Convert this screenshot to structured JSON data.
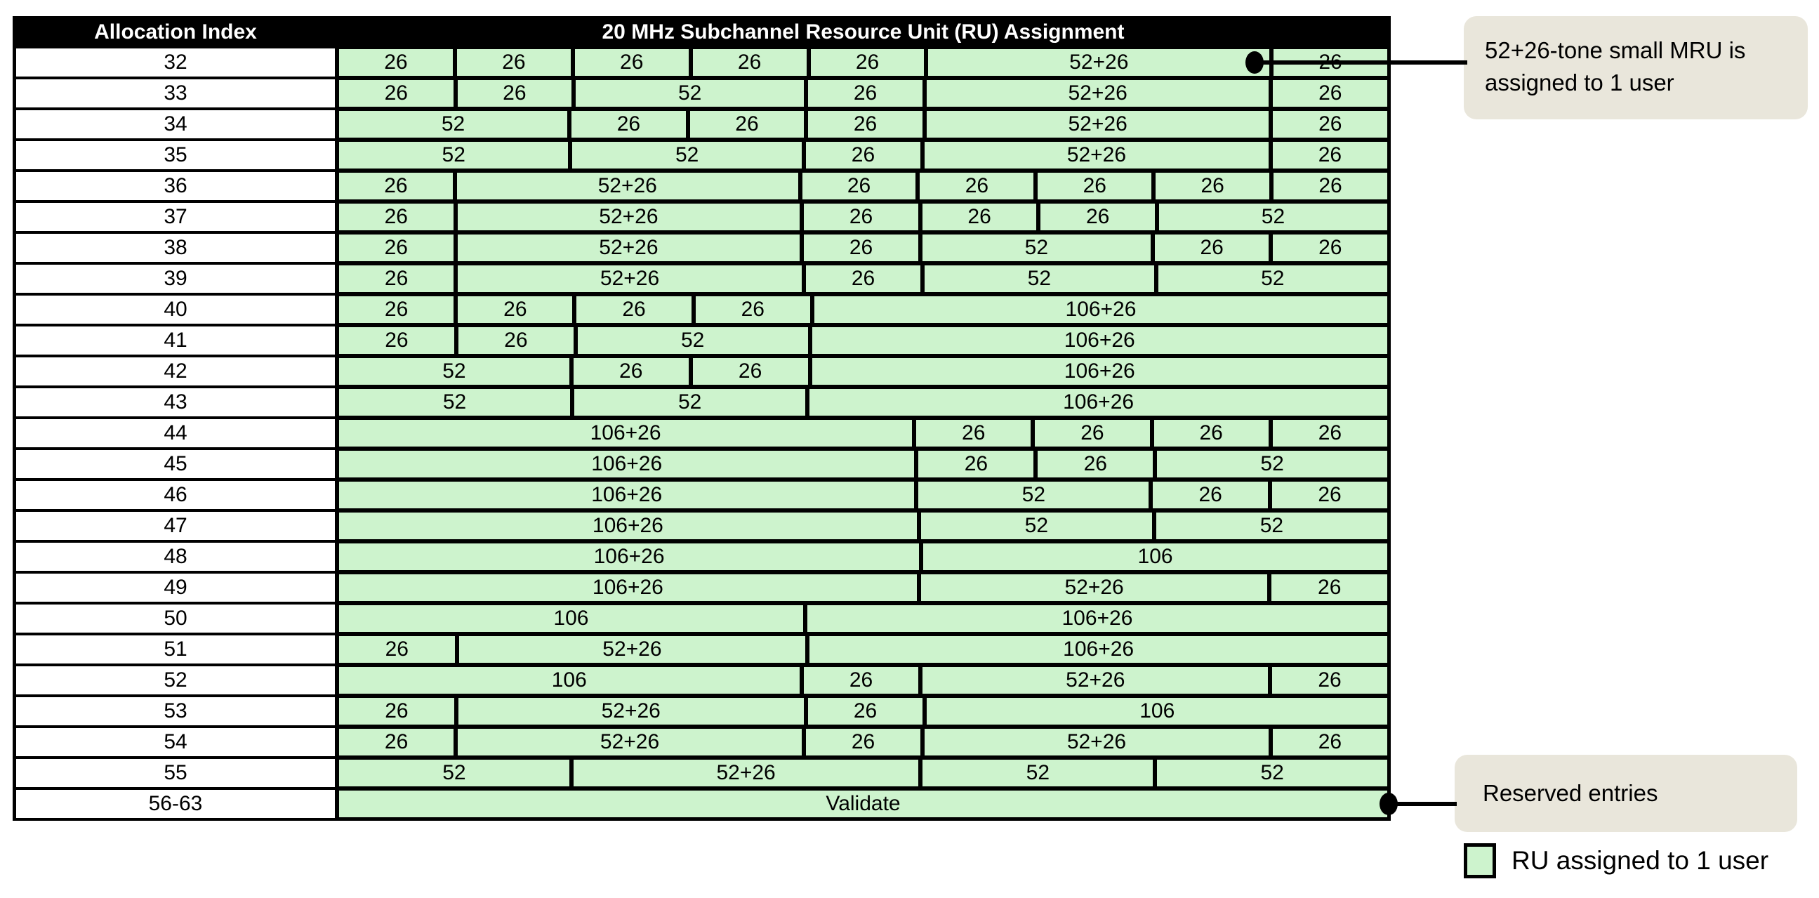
{
  "colors": {
    "ru_fill": "#cdf3cd",
    "callout_fill": "#e9e6db",
    "header_bg": "#000000",
    "border": "#000000"
  },
  "table": {
    "header": {
      "index": "Allocation Index",
      "ru": "20 MHz Subchannel Resource Unit (RU) Assignment"
    },
    "rows": [
      {
        "index": "32",
        "cells": [
          {
            "t": "26",
            "s": 1
          },
          {
            "t": "26",
            "s": 1
          },
          {
            "t": "26",
            "s": 1
          },
          {
            "t": "26",
            "s": 1
          },
          {
            "t": "26",
            "s": 1
          },
          {
            "t": "52+26",
            "s": 3,
            "dot": "inner"
          },
          {
            "t": "26",
            "s": 1
          }
        ]
      },
      {
        "index": "33",
        "cells": [
          {
            "t": "26",
            "s": 1
          },
          {
            "t": "26",
            "s": 1
          },
          {
            "t": "52",
            "s": 2
          },
          {
            "t": "26",
            "s": 1
          },
          {
            "t": "52+26",
            "s": 3
          },
          {
            "t": "26",
            "s": 1
          }
        ]
      },
      {
        "index": "34",
        "cells": [
          {
            "t": "52",
            "s": 2
          },
          {
            "t": "26",
            "s": 1
          },
          {
            "t": "26",
            "s": 1
          },
          {
            "t": "26",
            "s": 1
          },
          {
            "t": "52+26",
            "s": 3
          },
          {
            "t": "26",
            "s": 1
          }
        ]
      },
      {
        "index": "35",
        "cells": [
          {
            "t": "52",
            "s": 2
          },
          {
            "t": "52",
            "s": 2
          },
          {
            "t": "26",
            "s": 1
          },
          {
            "t": "52+26",
            "s": 3
          },
          {
            "t": "26",
            "s": 1
          }
        ]
      },
      {
        "index": "36",
        "cells": [
          {
            "t": "26",
            "s": 1
          },
          {
            "t": "52+26",
            "s": 3
          },
          {
            "t": "26",
            "s": 1
          },
          {
            "t": "26",
            "s": 1
          },
          {
            "t": "26",
            "s": 1
          },
          {
            "t": "26",
            "s": 1
          },
          {
            "t": "26",
            "s": 1
          }
        ]
      },
      {
        "index": "37",
        "cells": [
          {
            "t": "26",
            "s": 1
          },
          {
            "t": "52+26",
            "s": 3
          },
          {
            "t": "26",
            "s": 1
          },
          {
            "t": "26",
            "s": 1
          },
          {
            "t": "26",
            "s": 1
          },
          {
            "t": "52",
            "s": 2
          }
        ]
      },
      {
        "index": "38",
        "cells": [
          {
            "t": "26",
            "s": 1
          },
          {
            "t": "52+26",
            "s": 3
          },
          {
            "t": "26",
            "s": 1
          },
          {
            "t": "52",
            "s": 2
          },
          {
            "t": "26",
            "s": 1
          },
          {
            "t": "26",
            "s": 1
          }
        ]
      },
      {
        "index": "39",
        "cells": [
          {
            "t": "26",
            "s": 1
          },
          {
            "t": "52+26",
            "s": 3
          },
          {
            "t": "26",
            "s": 1
          },
          {
            "t": "52",
            "s": 2
          },
          {
            "t": "52",
            "s": 2
          }
        ]
      },
      {
        "index": "40",
        "cells": [
          {
            "t": "26",
            "s": 1
          },
          {
            "t": "26",
            "s": 1
          },
          {
            "t": "26",
            "s": 1
          },
          {
            "t": "26",
            "s": 1
          },
          {
            "t": "106+26",
            "s": 5
          }
        ]
      },
      {
        "index": "41",
        "cells": [
          {
            "t": "26",
            "s": 1
          },
          {
            "t": "26",
            "s": 1
          },
          {
            "t": "52",
            "s": 2
          },
          {
            "t": "106+26",
            "s": 5
          }
        ]
      },
      {
        "index": "42",
        "cells": [
          {
            "t": "52",
            "s": 2
          },
          {
            "t": "26",
            "s": 1
          },
          {
            "t": "26",
            "s": 1
          },
          {
            "t": "106+26",
            "s": 5
          }
        ]
      },
      {
        "index": "43",
        "cells": [
          {
            "t": "52",
            "s": 2
          },
          {
            "t": "52",
            "s": 2
          },
          {
            "t": "106+26",
            "s": 5
          }
        ]
      },
      {
        "index": "44",
        "cells": [
          {
            "t": "106+26",
            "s": 5
          },
          {
            "t": "26",
            "s": 1
          },
          {
            "t": "26",
            "s": 1
          },
          {
            "t": "26",
            "s": 1
          },
          {
            "t": "26",
            "s": 1
          }
        ]
      },
      {
        "index": "45",
        "cells": [
          {
            "t": "106+26",
            "s": 5
          },
          {
            "t": "26",
            "s": 1
          },
          {
            "t": "26",
            "s": 1
          },
          {
            "t": "52",
            "s": 2
          }
        ]
      },
      {
        "index": "46",
        "cells": [
          {
            "t": "106+26",
            "s": 5
          },
          {
            "t": "52",
            "s": 2
          },
          {
            "t": "26",
            "s": 1
          },
          {
            "t": "26",
            "s": 1
          }
        ]
      },
      {
        "index": "47",
        "cells": [
          {
            "t": "106+26",
            "s": 5
          },
          {
            "t": "52",
            "s": 2
          },
          {
            "t": "52",
            "s": 2
          }
        ]
      },
      {
        "index": "48",
        "cells": [
          {
            "t": "106+26",
            "s": 5
          },
          {
            "t": "106",
            "s": 4
          }
        ]
      },
      {
        "index": "49",
        "cells": [
          {
            "t": "106+26",
            "s": 5
          },
          {
            "t": "52+26",
            "s": 3
          },
          {
            "t": "26",
            "s": 1
          }
        ]
      },
      {
        "index": "50",
        "cells": [
          {
            "t": "106",
            "s": 4
          },
          {
            "t": "106+26",
            "s": 5
          }
        ]
      },
      {
        "index": "51",
        "cells": [
          {
            "t": "26",
            "s": 1
          },
          {
            "t": "52+26",
            "s": 3
          },
          {
            "t": "106+26",
            "s": 5
          }
        ]
      },
      {
        "index": "52",
        "cells": [
          {
            "t": "106",
            "s": 4
          },
          {
            "t": "26",
            "s": 1
          },
          {
            "t": "52+26",
            "s": 3
          },
          {
            "t": "26",
            "s": 1
          }
        ]
      },
      {
        "index": "53",
        "cells": [
          {
            "t": "26",
            "s": 1
          },
          {
            "t": "52+26",
            "s": 3
          },
          {
            "t": "26",
            "s": 1
          },
          {
            "t": "106",
            "s": 4
          }
        ]
      },
      {
        "index": "54",
        "cells": [
          {
            "t": "26",
            "s": 1
          },
          {
            "t": "52+26",
            "s": 3
          },
          {
            "t": "26",
            "s": 1
          },
          {
            "t": "52+26",
            "s": 3
          },
          {
            "t": "26",
            "s": 1
          }
        ]
      },
      {
        "index": "55",
        "cells": [
          {
            "t": "52",
            "s": 2
          },
          {
            "t": "52+26",
            "s": 3
          },
          {
            "t": "52",
            "s": 2
          },
          {
            "t": "52",
            "s": 2
          }
        ]
      },
      {
        "index": "56-63",
        "cells": [
          {
            "t": "Validate",
            "s": 9,
            "dot": "edge"
          }
        ]
      }
    ]
  },
  "callouts": {
    "mru": {
      "text": "52+26-tone small MRU is\nassigned to 1 user"
    },
    "reserved": {
      "text": "Reserved entries"
    }
  },
  "legend": {
    "text": "RU assigned to 1 user"
  }
}
